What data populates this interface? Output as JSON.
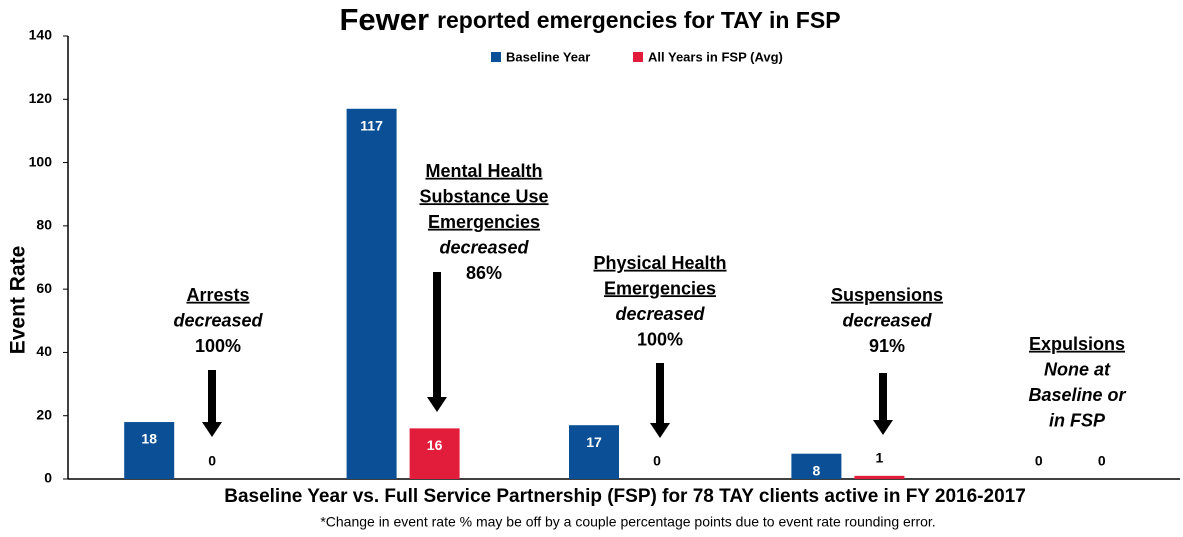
{
  "chart_data": {
    "type": "bar",
    "title": [
      "Fewer",
      "reported emergencies for TAY in FSP"
    ],
    "x_label": "Baseline Year vs. Full Service Partnership (FSP) for 78 TAY clients active in FY 2016-2017",
    "y_label": "Event Rate",
    "footnote": "*Change in event rate % may be off by a couple percentage points due to event rate rounding error.",
    "categories": [
      null,
      null,
      null,
      null,
      null
    ],
    "series": [
      {
        "name": "Baseline Year",
        "color": "#0b4f97",
        "values": [
          18,
          117,
          17,
          8,
          0
        ]
      },
      {
        "name": "All Years in FSP (Avg)",
        "color": "#e21d3c",
        "values": [
          0,
          16,
          0,
          1,
          0
        ]
      }
    ],
    "annotations": [
      {
        "title": [
          "Arrests"
        ],
        "note": [
          "decreased"
        ],
        "percent": "100%"
      },
      {
        "title": [
          "Mental Health",
          "Substance Use",
          "Emergencies"
        ],
        "note": [
          "decreased"
        ],
        "percent": "86%"
      },
      {
        "title": [
          "Physical Health",
          "Emergencies"
        ],
        "note": [
          "decreased"
        ],
        "percent": "100%"
      },
      {
        "title": [
          "Suspensions"
        ],
        "note": [
          "decreased"
        ],
        "percent": "91%"
      },
      {
        "title": [
          "Expulsions"
        ],
        "note": [
          "None at",
          "Baseline or",
          "in FSP"
        ]
      }
    ],
    "ylim": [
      0,
      140
    ],
    "yticks": [
      0,
      20,
      40,
      60,
      80,
      100,
      120,
      140
    ],
    "grid": false,
    "legend": "top"
  }
}
